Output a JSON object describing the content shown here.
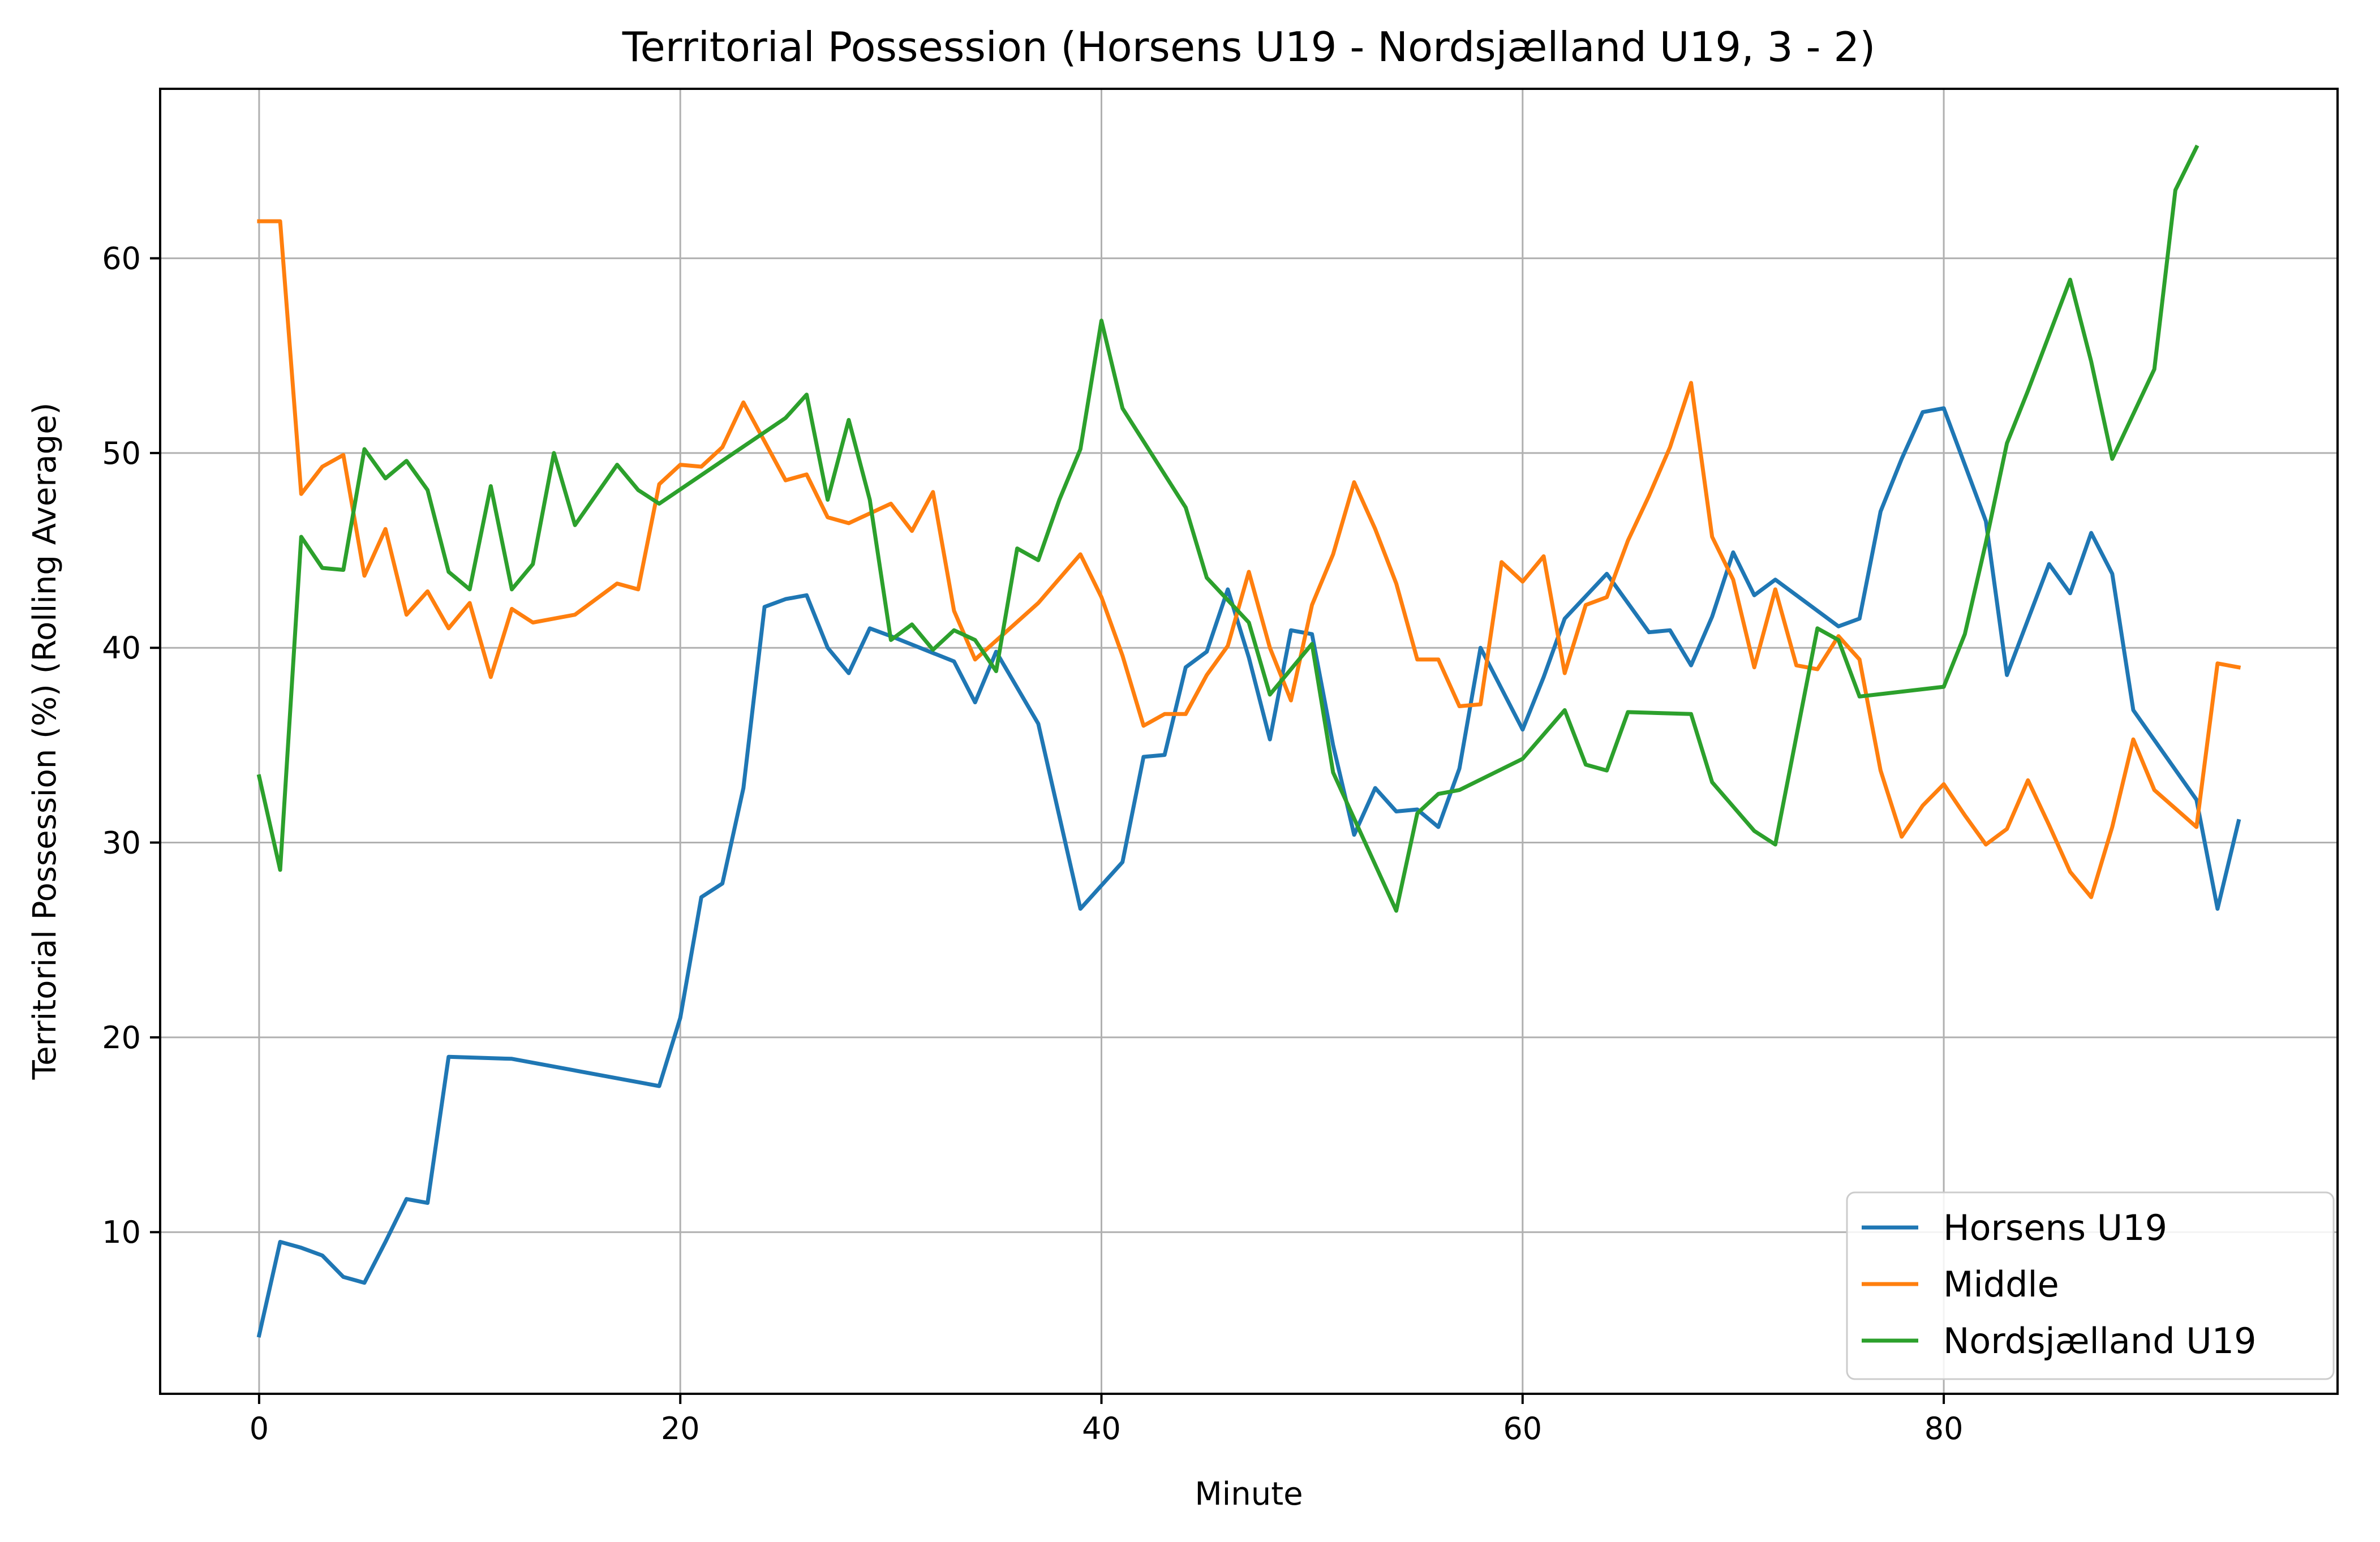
{
  "chart_data": {
    "type": "line",
    "title": "Territorial Possession (Horsens U19 - Nordsjælland U19, 3 - 2)",
    "xlabel": "Minute",
    "ylabel": "Territorial Possession (%) (Rolling Average)",
    "xlim": [
      -4.7,
      98.7
    ],
    "ylim": [
      1.7,
      68.7
    ],
    "xticks": [
      0,
      20,
      40,
      60,
      80
    ],
    "yticks": [
      10,
      20,
      30,
      40,
      50,
      60
    ],
    "grid": true,
    "legend_position": "lower right",
    "series": [
      {
        "name": "Horsens U19",
        "color": "#1f77b4",
        "points": [
          [
            0,
            4.7
          ],
          [
            1,
            9.5
          ],
          [
            2,
            9.2
          ],
          [
            3,
            8.8
          ],
          [
            4,
            7.7
          ],
          [
            5,
            7.4
          ],
          [
            6,
            9.5
          ],
          [
            7,
            11.7
          ],
          [
            8,
            11.5
          ],
          [
            9,
            19.0
          ],
          [
            12,
            18.9
          ],
          [
            19,
            17.5
          ],
          [
            20,
            21.0
          ],
          [
            21,
            27.2
          ],
          [
            22,
            27.9
          ],
          [
            23,
            32.8
          ],
          [
            24,
            42.1
          ],
          [
            25,
            42.5
          ],
          [
            26,
            42.7
          ],
          [
            27,
            40.0
          ],
          [
            28,
            38.7
          ],
          [
            29,
            41.0
          ],
          [
            30,
            40.6
          ],
          [
            33,
            39.3
          ],
          [
            34,
            37.2
          ],
          [
            35,
            39.8
          ],
          [
            37,
            36.1
          ],
          [
            39,
            26.6
          ],
          [
            41,
            29.0
          ],
          [
            42,
            34.4
          ],
          [
            43,
            34.5
          ],
          [
            44,
            39.0
          ],
          [
            45,
            39.8
          ],
          [
            46,
            43.0
          ],
          [
            47,
            39.5
          ],
          [
            48,
            35.3
          ],
          [
            49,
            40.9
          ],
          [
            50,
            40.7
          ],
          [
            51,
            35.0
          ],
          [
            52,
            30.4
          ],
          [
            53,
            32.8
          ],
          [
            54,
            31.6
          ],
          [
            55,
            31.7
          ],
          [
            56,
            30.8
          ],
          [
            57,
            33.8
          ],
          [
            58,
            40.0
          ],
          [
            60,
            35.8
          ],
          [
            61,
            38.5
          ],
          [
            62,
            41.5
          ],
          [
            64,
            43.8
          ],
          [
            66,
            40.8
          ],
          [
            67,
            40.9
          ],
          [
            68,
            39.1
          ],
          [
            69,
            41.6
          ],
          [
            70,
            44.9
          ],
          [
            71,
            42.7
          ],
          [
            72,
            43.5
          ],
          [
            75,
            41.1
          ],
          [
            76,
            41.5
          ],
          [
            77,
            47.0
          ],
          [
            78,
            49.7
          ],
          [
            79,
            52.1
          ],
          [
            80,
            52.3
          ],
          [
            82,
            46.5
          ],
          [
            83,
            38.6
          ],
          [
            85,
            44.3
          ],
          [
            86,
            42.8
          ],
          [
            87,
            45.9
          ],
          [
            88,
            43.8
          ],
          [
            89,
            36.8
          ],
          [
            92,
            32.2
          ],
          [
            93,
            26.6
          ],
          [
            94,
            31.1
          ]
        ]
      },
      {
        "name": "Middle",
        "color": "#ff7f0e",
        "points": [
          [
            0,
            61.9
          ],
          [
            1,
            61.9
          ],
          [
            2,
            47.9
          ],
          [
            3,
            49.3
          ],
          [
            4,
            49.9
          ],
          [
            5,
            43.7
          ],
          [
            6,
            46.1
          ],
          [
            7,
            41.7
          ],
          [
            8,
            42.9
          ],
          [
            9,
            41.0
          ],
          [
            10,
            42.3
          ],
          [
            11,
            38.5
          ],
          [
            12,
            42.0
          ],
          [
            13,
            41.3
          ],
          [
            15,
            41.7
          ],
          [
            17,
            43.3
          ],
          [
            18,
            43.0
          ],
          [
            19,
            48.4
          ],
          [
            20,
            49.4
          ],
          [
            21,
            49.3
          ],
          [
            22,
            50.3
          ],
          [
            23,
            52.6
          ],
          [
            24,
            50.6
          ],
          [
            25,
            48.6
          ],
          [
            26,
            48.9
          ],
          [
            27,
            46.7
          ],
          [
            28,
            46.4
          ],
          [
            30,
            47.4
          ],
          [
            31,
            46.0
          ],
          [
            32,
            48.0
          ],
          [
            33,
            41.9
          ],
          [
            34,
            39.4
          ],
          [
            37,
            42.3
          ],
          [
            39,
            44.8
          ],
          [
            40,
            42.6
          ],
          [
            41,
            39.6
          ],
          [
            42,
            36.0
          ],
          [
            43,
            36.6
          ],
          [
            44,
            36.6
          ],
          [
            45,
            38.6
          ],
          [
            46,
            40.1
          ],
          [
            47,
            43.9
          ],
          [
            48,
            40.0
          ],
          [
            49,
            37.3
          ],
          [
            50,
            42.2
          ],
          [
            51,
            44.8
          ],
          [
            52,
            48.5
          ],
          [
            53,
            46.1
          ],
          [
            54,
            43.3
          ],
          [
            55,
            39.4
          ],
          [
            56,
            39.4
          ],
          [
            57,
            37.0
          ],
          [
            58,
            37.1
          ],
          [
            59,
            44.4
          ],
          [
            60,
            43.4
          ],
          [
            61,
            44.7
          ],
          [
            62,
            38.7
          ],
          [
            63,
            42.2
          ],
          [
            64,
            42.6
          ],
          [
            65,
            45.5
          ],
          [
            66,
            47.8
          ],
          [
            67,
            50.3
          ],
          [
            68,
            53.6
          ],
          [
            69,
            45.7
          ],
          [
            70,
            43.5
          ],
          [
            71,
            39.0
          ],
          [
            72,
            43.0
          ],
          [
            73,
            39.1
          ],
          [
            74,
            38.9
          ],
          [
            75,
            40.6
          ],
          [
            76,
            39.4
          ],
          [
            77,
            33.7
          ],
          [
            78,
            30.3
          ],
          [
            79,
            31.9
          ],
          [
            80,
            33.0
          ],
          [
            81,
            31.4
          ],
          [
            82,
            29.9
          ],
          [
            83,
            30.7
          ],
          [
            84,
            33.2
          ],
          [
            85,
            30.9
          ],
          [
            86,
            28.5
          ],
          [
            87,
            27.2
          ],
          [
            88,
            30.8
          ],
          [
            89,
            35.3
          ],
          [
            90,
            32.7
          ],
          [
            92,
            30.8
          ],
          [
            93,
            39.2
          ],
          [
            94,
            39.0
          ]
        ]
      },
      {
        "name": "Nordsjælland U19",
        "color": "#2ca02c",
        "points": [
          [
            0,
            33.4
          ],
          [
            1,
            28.6
          ],
          [
            2,
            45.7
          ],
          [
            3,
            44.1
          ],
          [
            4,
            44.0
          ],
          [
            5,
            50.2
          ],
          [
            6,
            48.7
          ],
          [
            7,
            49.6
          ],
          [
            8,
            48.1
          ],
          [
            9,
            43.9
          ],
          [
            10,
            43.0
          ],
          [
            11,
            48.3
          ],
          [
            12,
            43.0
          ],
          [
            13,
            44.3
          ],
          [
            14,
            50.0
          ],
          [
            15,
            46.3
          ],
          [
            17,
            49.4
          ],
          [
            18,
            48.1
          ],
          [
            19,
            47.4
          ],
          [
            25,
            51.8
          ],
          [
            26,
            53.0
          ],
          [
            27,
            47.6
          ],
          [
            28,
            51.7
          ],
          [
            29,
            47.6
          ],
          [
            30,
            40.4
          ],
          [
            31,
            41.2
          ],
          [
            32,
            39.9
          ],
          [
            33,
            40.9
          ],
          [
            34,
            40.4
          ],
          [
            35,
            38.8
          ],
          [
            36,
            45.1
          ],
          [
            37,
            44.5
          ],
          [
            38,
            47.6
          ],
          [
            39,
            50.2
          ],
          [
            40,
            56.8
          ],
          [
            41,
            52.3
          ],
          [
            44,
            47.2
          ],
          [
            45,
            43.6
          ],
          [
            47,
            41.3
          ],
          [
            48,
            37.6
          ],
          [
            50,
            40.2
          ],
          [
            51,
            33.6
          ],
          [
            54,
            26.5
          ],
          [
            55,
            31.5
          ],
          [
            56,
            32.5
          ],
          [
            57,
            32.7
          ],
          [
            60,
            34.3
          ],
          [
            62,
            36.8
          ],
          [
            63,
            34.0
          ],
          [
            64,
            33.7
          ],
          [
            65,
            36.7
          ],
          [
            68,
            36.6
          ],
          [
            69,
            33.1
          ],
          [
            71,
            30.6
          ],
          [
            72,
            29.9
          ],
          [
            74,
            41.0
          ],
          [
            75,
            40.4
          ],
          [
            76,
            37.5
          ],
          [
            80,
            38.0
          ],
          [
            81,
            40.7
          ],
          [
            82,
            45.4
          ],
          [
            83,
            50.5
          ],
          [
            84,
            53.2
          ],
          [
            86,
            58.9
          ],
          [
            87,
            54.7
          ],
          [
            88,
            49.7
          ],
          [
            90,
            54.3
          ],
          [
            91,
            63.5
          ],
          [
            92,
            65.7
          ]
        ]
      }
    ]
  }
}
